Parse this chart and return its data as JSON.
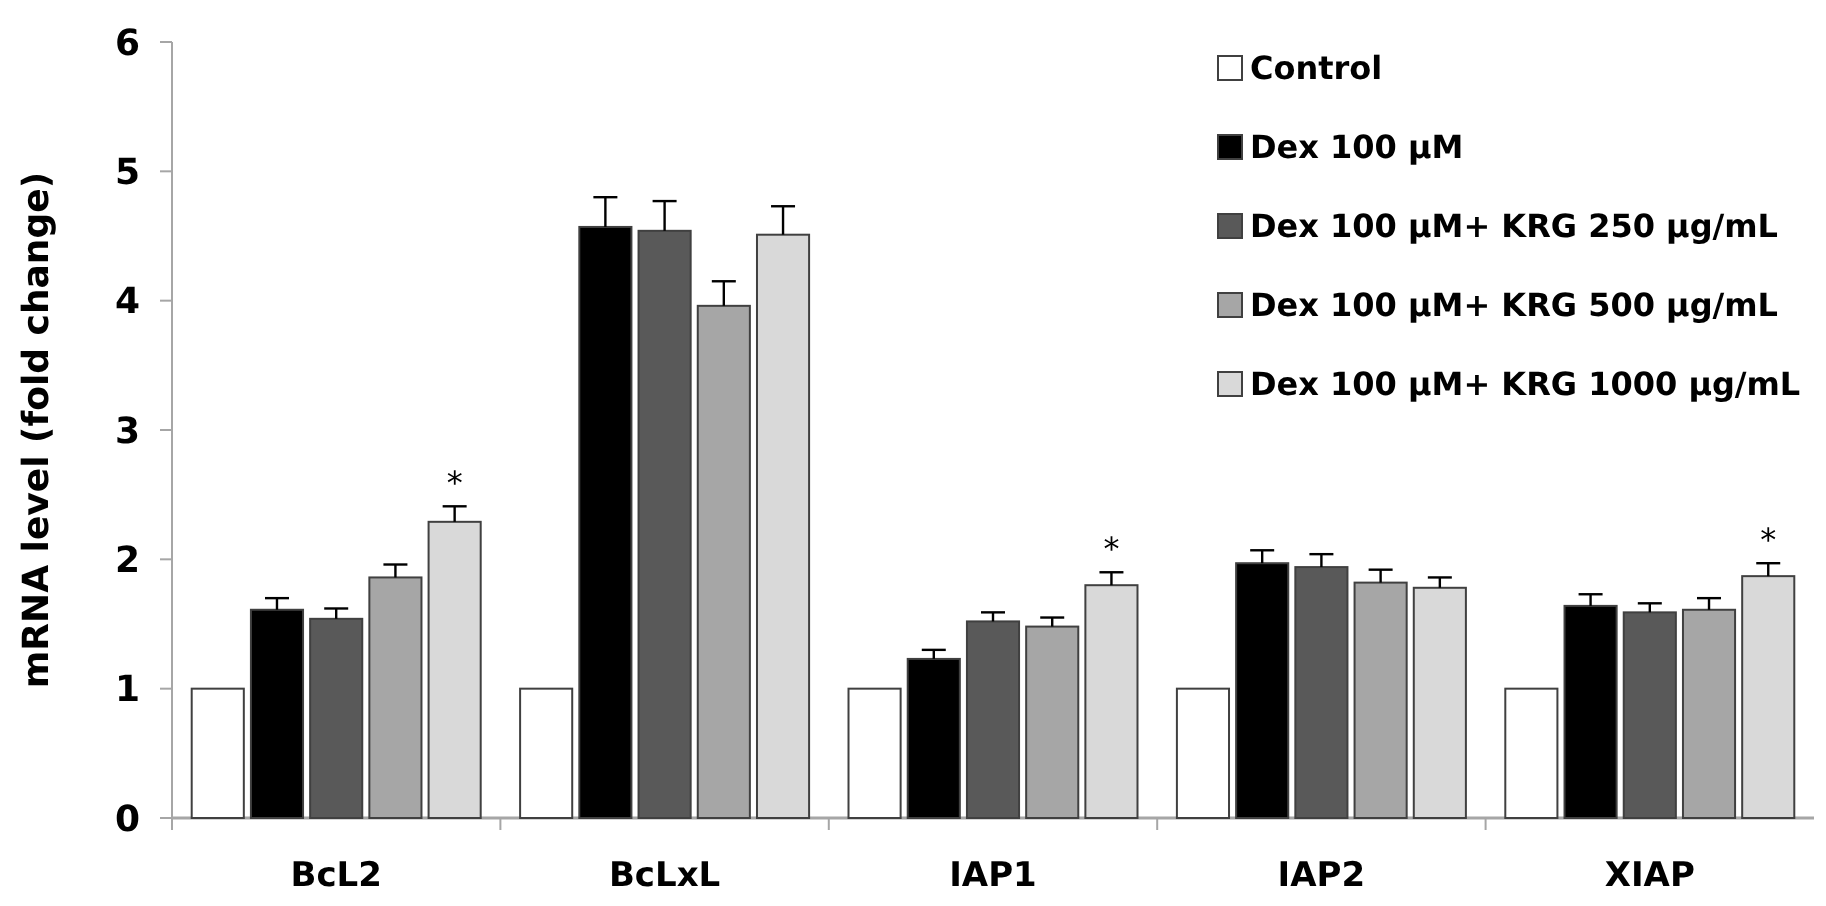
{
  "chart_data": {
    "type": "bar",
    "ylabel": "mRNA level  (fold change)",
    "categories": [
      "BcL2",
      "BcLxL",
      "IAP1",
      "IAP2",
      "XIAP"
    ],
    "series": [
      {
        "name": "Control",
        "color": "#ffffff",
        "values": [
          1,
          1,
          1,
          1,
          1
        ]
      },
      {
        "name": "Dex 100 μM",
        "color": "#000000",
        "values": [
          1.61,
          4.57,
          1.23,
          1.97,
          1.64
        ],
        "errors": [
          0.09,
          0.23,
          0.07,
          0.1,
          0.09
        ]
      },
      {
        "name": "Dex 100 μM+  KRG 250 μg/mL",
        "color": "#595959",
        "values": [
          1.54,
          4.54,
          1.52,
          1.94,
          1.59
        ],
        "errors": [
          0.08,
          0.23,
          0.07,
          0.1,
          0.07
        ]
      },
      {
        "name": "Dex 100 μM+  KRG 500 μg/mL",
        "color": "#a6a6a6",
        "values": [
          1.86,
          3.96,
          1.48,
          1.82,
          1.61
        ],
        "errors": [
          0.1,
          0.19,
          0.07,
          0.1,
          0.09
        ]
      },
      {
        "name": "Dex 100 μM+  KRG 1000 μg/mL",
        "color": "#d9d9d9",
        "values": [
          2.29,
          4.51,
          1.8,
          1.78,
          1.87
        ],
        "errors": [
          0.12,
          0.22,
          0.1,
          0.08,
          0.1
        ],
        "value_labels": [
          "*",
          null,
          "*",
          null,
          "*"
        ]
      }
    ],
    "ylim": [
      0,
      6
    ],
    "yticks": [
      0,
      1,
      2,
      3,
      4,
      5,
      6
    ],
    "grid": false,
    "legend": "top right"
  }
}
